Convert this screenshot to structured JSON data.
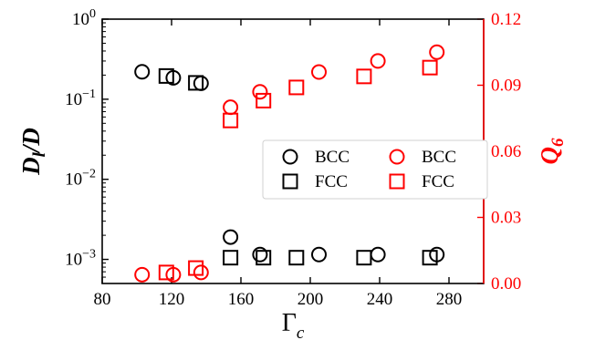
{
  "chart_data": {
    "type": "scatter",
    "x_axis": {
      "label_main": "Γ",
      "label_sub": "c",
      "range": [
        80,
        300
      ],
      "ticks": [
        80,
        120,
        160,
        200,
        240,
        280
      ],
      "tick_labels": [
        "80",
        "120",
        "160",
        "200",
        "240",
        "280"
      ]
    },
    "y_left": {
      "label_main": "D",
      "label_sub": "l",
      "label_rest": "/D",
      "scale": "log",
      "range": [
        0.0005,
        1
      ],
      "ticks": [
        0.001,
        0.01,
        0.1,
        1
      ],
      "tick_base": [
        "10",
        "10",
        "10",
        "10"
      ],
      "tick_exp": [
        "−3",
        "−2",
        "−1",
        "0"
      ],
      "color": "#000000"
    },
    "y_right": {
      "label_main": "Q",
      "label_sub": "6",
      "scale": "linear",
      "range": [
        0,
        0.12
      ],
      "ticks": [
        0,
        0.03,
        0.06,
        0.09,
        0.12
      ],
      "tick_labels": [
        "0.00",
        "0.03",
        "0.06",
        "0.09",
        "0.12"
      ],
      "color": "#ff0000"
    },
    "series": [
      {
        "name": "BCC",
        "axis": "left",
        "marker": "circle",
        "color": "#000000",
        "x": [
          103,
          121,
          137,
          154,
          171,
          205,
          239,
          273
        ],
        "y": [
          0.22,
          0.185,
          0.158,
          0.0019,
          0.00115,
          0.00115,
          0.00115,
          0.00115
        ]
      },
      {
        "name": "FCC",
        "axis": "left",
        "marker": "square",
        "color": "#000000",
        "x": [
          117,
          134,
          154,
          173,
          192,
          231,
          269
        ],
        "y": [
          0.195,
          0.16,
          0.00105,
          0.00105,
          0.00105,
          0.00105,
          0.00105
        ]
      },
      {
        "name": "BCC",
        "axis": "right",
        "marker": "circle",
        "color": "#ff0000",
        "x": [
          103,
          121,
          137,
          154,
          171,
          205,
          239,
          273
        ],
        "y": [
          0.004,
          0.004,
          0.005,
          0.08,
          0.087,
          0.096,
          0.101,
          0.105
        ]
      },
      {
        "name": "FCC",
        "axis": "right",
        "marker": "square",
        "color": "#ff0000",
        "x": [
          117,
          134,
          154,
          173,
          192,
          231,
          269
        ],
        "y": [
          0.005,
          0.007,
          0.074,
          0.083,
          0.089,
          0.094,
          0.098
        ]
      }
    ],
    "legend": {
      "placement": "center-right",
      "entries": [
        {
          "label": "BCC",
          "marker": "circle",
          "color": "#000000"
        },
        {
          "label": "BCC",
          "marker": "circle",
          "color": "#ff0000"
        },
        {
          "label": "FCC",
          "marker": "square",
          "color": "#000000"
        },
        {
          "label": "FCC",
          "marker": "square",
          "color": "#ff0000"
        }
      ]
    }
  }
}
